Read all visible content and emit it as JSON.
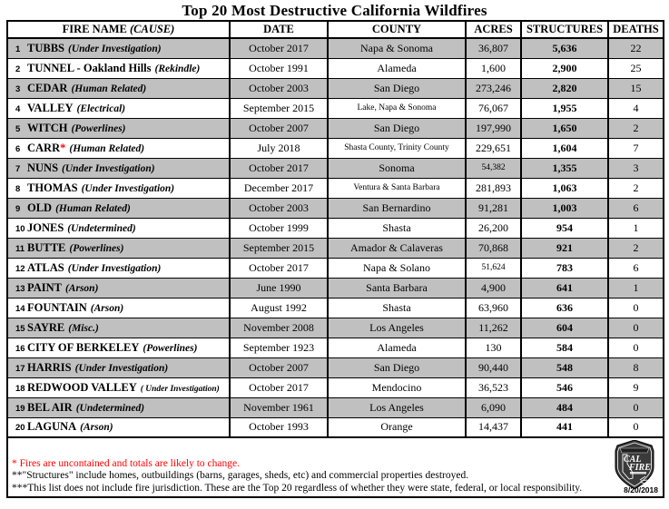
{
  "title": "Top 20 Most Destructive California Wildfires",
  "table": {
    "headers": {
      "fire_name": "FIRE NAME",
      "cause": "(CAUSE)",
      "date": "DATE",
      "county": "COUNTY",
      "acres": "ACRES",
      "structures": "STRUCTURES",
      "deaths": "DEATHS"
    }
  },
  "rows": [
    {
      "rank": "1",
      "name": "TUBBS",
      "cause": "(Under Investigation)",
      "date": "October 2017",
      "county": "Napa & Sonoma",
      "acres": "36,807",
      "structures": "5,636",
      "deaths": "22"
    },
    {
      "rank": "2",
      "name": "TUNNEL - Oakland Hills",
      "cause": "(Rekindle)",
      "date": "October 1991",
      "county": "Alameda",
      "acres": "1,600",
      "structures": "2,900",
      "deaths": "25"
    },
    {
      "rank": "3",
      "name": "CEDAR",
      "cause": "(Human Related)",
      "date": "October 2003",
      "county": "San Diego",
      "acres": "273,246",
      "structures": "2,820",
      "deaths": "15"
    },
    {
      "rank": "4",
      "name": "VALLEY",
      "cause": "(Electrical)",
      "date": "September 2015",
      "county": "Lake, Napa & Sonoma",
      "acres": "76,067",
      "structures": "1,955",
      "deaths": "4",
      "county_small": true
    },
    {
      "rank": "5",
      "name": "WITCH",
      "cause": "(Powerlines)",
      "date": "October 2007",
      "county": "San Diego",
      "acres": "197,990",
      "structures": "1,650",
      "deaths": "2"
    },
    {
      "rank": "6",
      "name": "CARR",
      "cause": "(Human Related)",
      "date": "July 2018",
      "county": "Shasta County, Trinity County",
      "acres": "229,651",
      "structures": "1,604",
      "deaths": "7",
      "asterisk": true,
      "county_small": true
    },
    {
      "rank": "7",
      "name": "NUNS",
      "cause": "(Under Investigation)",
      "date": "October 2017",
      "county": "Sonoma",
      "acres": "54,382",
      "structures": "1,355",
      "deaths": "3",
      "acres_small": true
    },
    {
      "rank": "8",
      "name": "THOMAS",
      "cause": "(Under Investigation)",
      "date": "December 2017",
      "county": "Ventura & Santa Barbara",
      "acres": "281,893",
      "structures": "1,063",
      "deaths": "2",
      "county_small": true
    },
    {
      "rank": "9",
      "name": "OLD",
      "cause": "(Human Related)",
      "date": "October 2003",
      "county": "San Bernardino",
      "acres": "91,281",
      "structures": "1,003",
      "deaths": "6"
    },
    {
      "rank": "10",
      "name": "JONES",
      "cause": "(Undetermined)",
      "date": "October 1999",
      "county": "Shasta",
      "acres": "26,200",
      "structures": "954",
      "deaths": "1"
    },
    {
      "rank": "11",
      "name": "BUTTE",
      "cause": "(Powerlines)",
      "date": "September 2015",
      "county": "Amador & Calaveras",
      "acres": "70,868",
      "structures": "921",
      "deaths": "2"
    },
    {
      "rank": "12",
      "name": "ATLAS",
      "cause": "(Under Investigation)",
      "date": "October 2017",
      "county": "Napa & Solano",
      "acres": "51,624",
      "structures": "783",
      "deaths": "6",
      "acres_small": true
    },
    {
      "rank": "13",
      "name": "PAINT",
      "cause": "(Arson)",
      "date": "June 1990",
      "county": "Santa Barbara",
      "acres": "4,900",
      "structures": "641",
      "deaths": "1"
    },
    {
      "rank": "14",
      "name": "FOUNTAIN",
      "cause": "(Arson)",
      "date": "August 1992",
      "county": "Shasta",
      "acres": "63,960",
      "structures": "636",
      "deaths": "0"
    },
    {
      "rank": "15",
      "name": "SAYRE",
      "cause": "(Misc.)",
      "date": "November 2008",
      "county": "Los Angeles",
      "acres": "11,262",
      "structures": "604",
      "deaths": "0"
    },
    {
      "rank": "16",
      "name": "CITY OF BERKELEY",
      "cause": "(Powerlines)",
      "date": "September 1923",
      "county": "Alameda",
      "acres": "130",
      "structures": "584",
      "deaths": "0"
    },
    {
      "rank": "17",
      "name": "HARRIS",
      "cause": "(Under Investigation)",
      "date": "October 2007",
      "county": "San Diego",
      "acres": "90,440",
      "structures": "548",
      "deaths": "8"
    },
    {
      "rank": "18",
      "name": "REDWOOD VALLEY",
      "cause": "( Under Investigation)",
      "date": "October 2017",
      "county": "Mendocino",
      "acres": "36,523",
      "structures": "546",
      "deaths": "9",
      "cause_small": true
    },
    {
      "rank": "19",
      "name": "BEL AIR",
      "cause": "(Undetermined)",
      "date": "November 1961",
      "county": "Los Angeles",
      "acres": "6,090",
      "structures": "484",
      "deaths": "0"
    },
    {
      "rank": "20",
      "name": "LAGUNA",
      "cause": "(Arson)",
      "date": "October 1993",
      "county": "Orange",
      "acres": "14,437",
      "structures": "441",
      "deaths": "0"
    }
  ],
  "notes": [
    "* Fires are uncontained and totals are likely to change.",
    "**\"Structures\" include homes, outbuildings (barns, garages, sheds, etc) and commercial properties destroyed.",
    "***This list does not include fire jurisdiction.  These are the Top 20 regardless of whether they were state, federal, or local responsibility."
  ],
  "footer_date": "8/20/2018",
  "logo": {
    "line1": "CAL",
    "line2": "FIRE"
  },
  "colors": {
    "row_shade": "#c0c0c0",
    "alert_red": "#ff0000",
    "border": "#000000"
  }
}
